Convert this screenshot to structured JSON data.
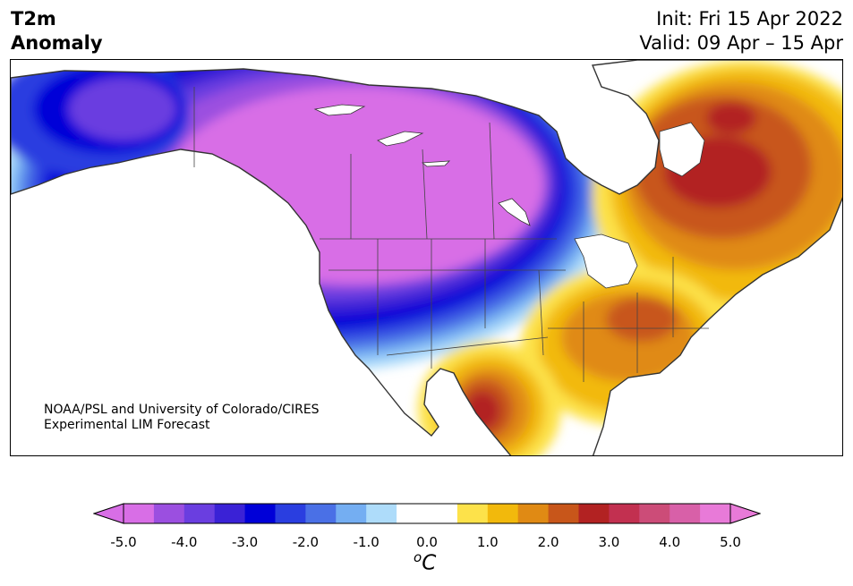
{
  "header": {
    "title_line1": "T2m",
    "title_line2": "Anomaly",
    "init": "Init: Fri 15 Apr 2022",
    "valid": "Valid: 09 Apr – 15 Apr"
  },
  "map": {
    "credit_line1": "NOAA/PSL and University of Colorado/CIRES",
    "credit_line2": "Experimental LIM Forecast",
    "region": "North America",
    "cold_anomaly_center": "Western Canada / Northern Plains",
    "warm_anomaly_centers": [
      "Northern Quebec",
      "Ohio Valley / Appalachians",
      "Northeastern Mexico"
    ]
  },
  "colorbar": {
    "unit_base": "C",
    "unit_sup": "o",
    "ticks": [
      "-5.0",
      "-4.0",
      "-3.0",
      "-2.0",
      "-1.0",
      "0.0",
      "1.0",
      "2.0",
      "3.0",
      "4.0",
      "5.0"
    ],
    "bins": [
      {
        "range": [
          -5.0,
          -4.5
        ],
        "color": "#d86ee6"
      },
      {
        "range": [
          -4.5,
          -4.0
        ],
        "color": "#9b4fe0"
      },
      {
        "range": [
          -4.0,
          -3.5
        ],
        "color": "#6a3ee0"
      },
      {
        "range": [
          -3.5,
          -3.0
        ],
        "color": "#3a22d6"
      },
      {
        "range": [
          -3.0,
          -2.5
        ],
        "color": "#0000d8"
      },
      {
        "range": [
          -2.5,
          -2.0
        ],
        "color": "#2a3ee0"
      },
      {
        "range": [
          -2.0,
          -1.5
        ],
        "color": "#4a70e6"
      },
      {
        "range": [
          -1.5,
          -1.0
        ],
        "color": "#74aef2"
      },
      {
        "range": [
          -1.0,
          -0.5
        ],
        "color": "#aedcfa"
      },
      {
        "range": [
          -0.5,
          0.5
        ],
        "color": "#ffffff"
      },
      {
        "range": [
          0.5,
          1.0
        ],
        "color": "#fde24a"
      },
      {
        "range": [
          1.0,
          1.5
        ],
        "color": "#f2b90c"
      },
      {
        "range": [
          1.5,
          2.0
        ],
        "color": "#e08a14"
      },
      {
        "range": [
          2.0,
          2.5
        ],
        "color": "#c8561a"
      },
      {
        "range": [
          2.5,
          3.0
        ],
        "color": "#b22222"
      },
      {
        "range": [
          3.0,
          3.5
        ],
        "color": "#c23050"
      },
      {
        "range": [
          3.5,
          4.0
        ],
        "color": "#cc4c78"
      },
      {
        "range": [
          4.0,
          4.5
        ],
        "color": "#d860a8"
      },
      {
        "range": [
          4.5,
          5.0
        ],
        "color": "#e87ad8"
      }
    ],
    "under_color": "#d86ee6",
    "over_color": "#e87ad8"
  }
}
